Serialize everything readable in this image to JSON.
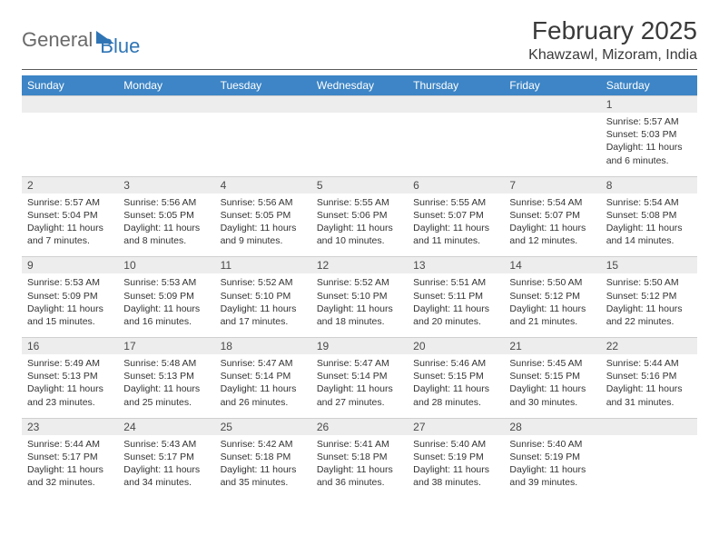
{
  "brand": {
    "part1": "General",
    "part2": "Blue"
  },
  "title": "February 2025",
  "location": "Khawzawl, Mizoram, India",
  "colors": {
    "header_bg": "#3d85c6",
    "header_text": "#ffffff",
    "daynum_bg": "#ededed",
    "brand_blue": "#2f75b5",
    "brand_gray": "#6a6a6a",
    "text": "#333333",
    "rule": "#5a5a5a"
  },
  "days_of_week": [
    "Sunday",
    "Monday",
    "Tuesday",
    "Wednesday",
    "Thursday",
    "Friday",
    "Saturday"
  ],
  "weeks": [
    [
      null,
      null,
      null,
      null,
      null,
      null,
      {
        "n": "1",
        "sr": "Sunrise: 5:57 AM",
        "ss": "Sunset: 5:03 PM",
        "dl": "Daylight: 11 hours and 6 minutes."
      }
    ],
    [
      {
        "n": "2",
        "sr": "Sunrise: 5:57 AM",
        "ss": "Sunset: 5:04 PM",
        "dl": "Daylight: 11 hours and 7 minutes."
      },
      {
        "n": "3",
        "sr": "Sunrise: 5:56 AM",
        "ss": "Sunset: 5:05 PM",
        "dl": "Daylight: 11 hours and 8 minutes."
      },
      {
        "n": "4",
        "sr": "Sunrise: 5:56 AM",
        "ss": "Sunset: 5:05 PM",
        "dl": "Daylight: 11 hours and 9 minutes."
      },
      {
        "n": "5",
        "sr": "Sunrise: 5:55 AM",
        "ss": "Sunset: 5:06 PM",
        "dl": "Daylight: 11 hours and 10 minutes."
      },
      {
        "n": "6",
        "sr": "Sunrise: 5:55 AM",
        "ss": "Sunset: 5:07 PM",
        "dl": "Daylight: 11 hours and 11 minutes."
      },
      {
        "n": "7",
        "sr": "Sunrise: 5:54 AM",
        "ss": "Sunset: 5:07 PM",
        "dl": "Daylight: 11 hours and 12 minutes."
      },
      {
        "n": "8",
        "sr": "Sunrise: 5:54 AM",
        "ss": "Sunset: 5:08 PM",
        "dl": "Daylight: 11 hours and 14 minutes."
      }
    ],
    [
      {
        "n": "9",
        "sr": "Sunrise: 5:53 AM",
        "ss": "Sunset: 5:09 PM",
        "dl": "Daylight: 11 hours and 15 minutes."
      },
      {
        "n": "10",
        "sr": "Sunrise: 5:53 AM",
        "ss": "Sunset: 5:09 PM",
        "dl": "Daylight: 11 hours and 16 minutes."
      },
      {
        "n": "11",
        "sr": "Sunrise: 5:52 AM",
        "ss": "Sunset: 5:10 PM",
        "dl": "Daylight: 11 hours and 17 minutes."
      },
      {
        "n": "12",
        "sr": "Sunrise: 5:52 AM",
        "ss": "Sunset: 5:10 PM",
        "dl": "Daylight: 11 hours and 18 minutes."
      },
      {
        "n": "13",
        "sr": "Sunrise: 5:51 AM",
        "ss": "Sunset: 5:11 PM",
        "dl": "Daylight: 11 hours and 20 minutes."
      },
      {
        "n": "14",
        "sr": "Sunrise: 5:50 AM",
        "ss": "Sunset: 5:12 PM",
        "dl": "Daylight: 11 hours and 21 minutes."
      },
      {
        "n": "15",
        "sr": "Sunrise: 5:50 AM",
        "ss": "Sunset: 5:12 PM",
        "dl": "Daylight: 11 hours and 22 minutes."
      }
    ],
    [
      {
        "n": "16",
        "sr": "Sunrise: 5:49 AM",
        "ss": "Sunset: 5:13 PM",
        "dl": "Daylight: 11 hours and 23 minutes."
      },
      {
        "n": "17",
        "sr": "Sunrise: 5:48 AM",
        "ss": "Sunset: 5:13 PM",
        "dl": "Daylight: 11 hours and 25 minutes."
      },
      {
        "n": "18",
        "sr": "Sunrise: 5:47 AM",
        "ss": "Sunset: 5:14 PM",
        "dl": "Daylight: 11 hours and 26 minutes."
      },
      {
        "n": "19",
        "sr": "Sunrise: 5:47 AM",
        "ss": "Sunset: 5:14 PM",
        "dl": "Daylight: 11 hours and 27 minutes."
      },
      {
        "n": "20",
        "sr": "Sunrise: 5:46 AM",
        "ss": "Sunset: 5:15 PM",
        "dl": "Daylight: 11 hours and 28 minutes."
      },
      {
        "n": "21",
        "sr": "Sunrise: 5:45 AM",
        "ss": "Sunset: 5:15 PM",
        "dl": "Daylight: 11 hours and 30 minutes."
      },
      {
        "n": "22",
        "sr": "Sunrise: 5:44 AM",
        "ss": "Sunset: 5:16 PM",
        "dl": "Daylight: 11 hours and 31 minutes."
      }
    ],
    [
      {
        "n": "23",
        "sr": "Sunrise: 5:44 AM",
        "ss": "Sunset: 5:17 PM",
        "dl": "Daylight: 11 hours and 32 minutes."
      },
      {
        "n": "24",
        "sr": "Sunrise: 5:43 AM",
        "ss": "Sunset: 5:17 PM",
        "dl": "Daylight: 11 hours and 34 minutes."
      },
      {
        "n": "25",
        "sr": "Sunrise: 5:42 AM",
        "ss": "Sunset: 5:18 PM",
        "dl": "Daylight: 11 hours and 35 minutes."
      },
      {
        "n": "26",
        "sr": "Sunrise: 5:41 AM",
        "ss": "Sunset: 5:18 PM",
        "dl": "Daylight: 11 hours and 36 minutes."
      },
      {
        "n": "27",
        "sr": "Sunrise: 5:40 AM",
        "ss": "Sunset: 5:19 PM",
        "dl": "Daylight: 11 hours and 38 minutes."
      },
      {
        "n": "28",
        "sr": "Sunrise: 5:40 AM",
        "ss": "Sunset: 5:19 PM",
        "dl": "Daylight: 11 hours and 39 minutes."
      },
      null
    ]
  ]
}
